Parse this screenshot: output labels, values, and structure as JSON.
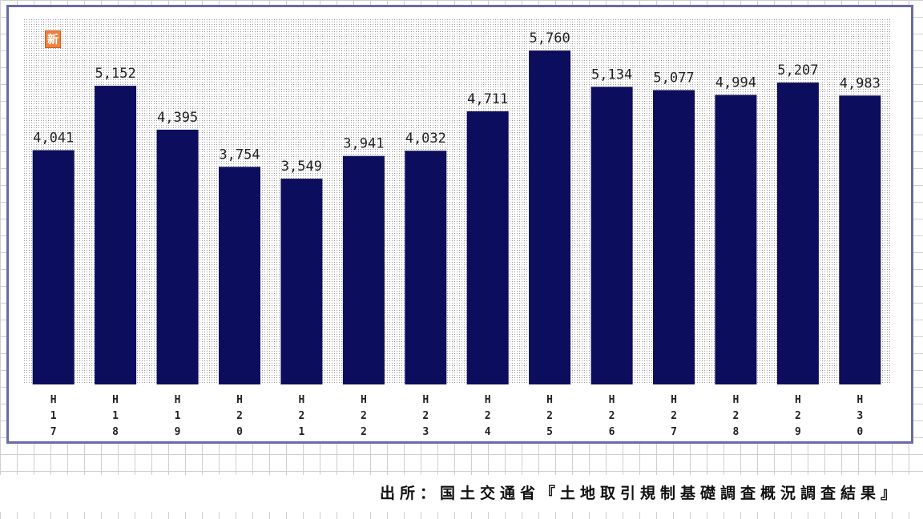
{
  "chart_data": {
    "type": "bar",
    "categories": [
      "H17",
      "H18",
      "H19",
      "H20",
      "H21",
      "H22",
      "H23",
      "H24",
      "H25",
      "H26",
      "H27",
      "H28",
      "H29",
      "H30"
    ],
    "values": [
      4041,
      5152,
      4395,
      3754,
      3549,
      3941,
      4032,
      4711,
      5760,
      5134,
      5077,
      4994,
      5207,
      4983
    ],
    "value_labels": [
      "4,041",
      "5,152",
      "4,395",
      "3,754",
      "3,549",
      "3,941",
      "4,032",
      "4,711",
      "5,760",
      "5,134",
      "5,077",
      "4,994",
      "5,207",
      "4,983"
    ],
    "tick_labels": [
      [
        "H",
        "1",
        "7"
      ],
      [
        "H",
        "1",
        "8"
      ],
      [
        "H",
        "1",
        "9"
      ],
      [
        "H",
        "2",
        "0"
      ],
      [
        "H",
        "2",
        "1"
      ],
      [
        "H",
        "2",
        "2"
      ],
      [
        "H",
        "2",
        "3"
      ],
      [
        "H",
        "2",
        "4"
      ],
      [
        "H",
        "2",
        "5"
      ],
      [
        "H",
        "2",
        "6"
      ],
      [
        "H",
        "2",
        "7"
      ],
      [
        "H",
        "2",
        "8"
      ],
      [
        "H",
        "2",
        "9"
      ],
      [
        "H",
        "3",
        "0"
      ]
    ],
    "ylim": [
      0,
      6300
    ],
    "colors": {
      "bar": "#0d0d5e",
      "frame": "#6a6aa8",
      "plot_dots": "#9a9a9a",
      "text": "#222222"
    },
    "grid": false,
    "legend": "none"
  },
  "logo": {
    "icon": "orange-square-logo-icon",
    "text": "新"
  },
  "source_note": "出所：国土交通省『土地取引規制基礎調査概況調査結果』"
}
